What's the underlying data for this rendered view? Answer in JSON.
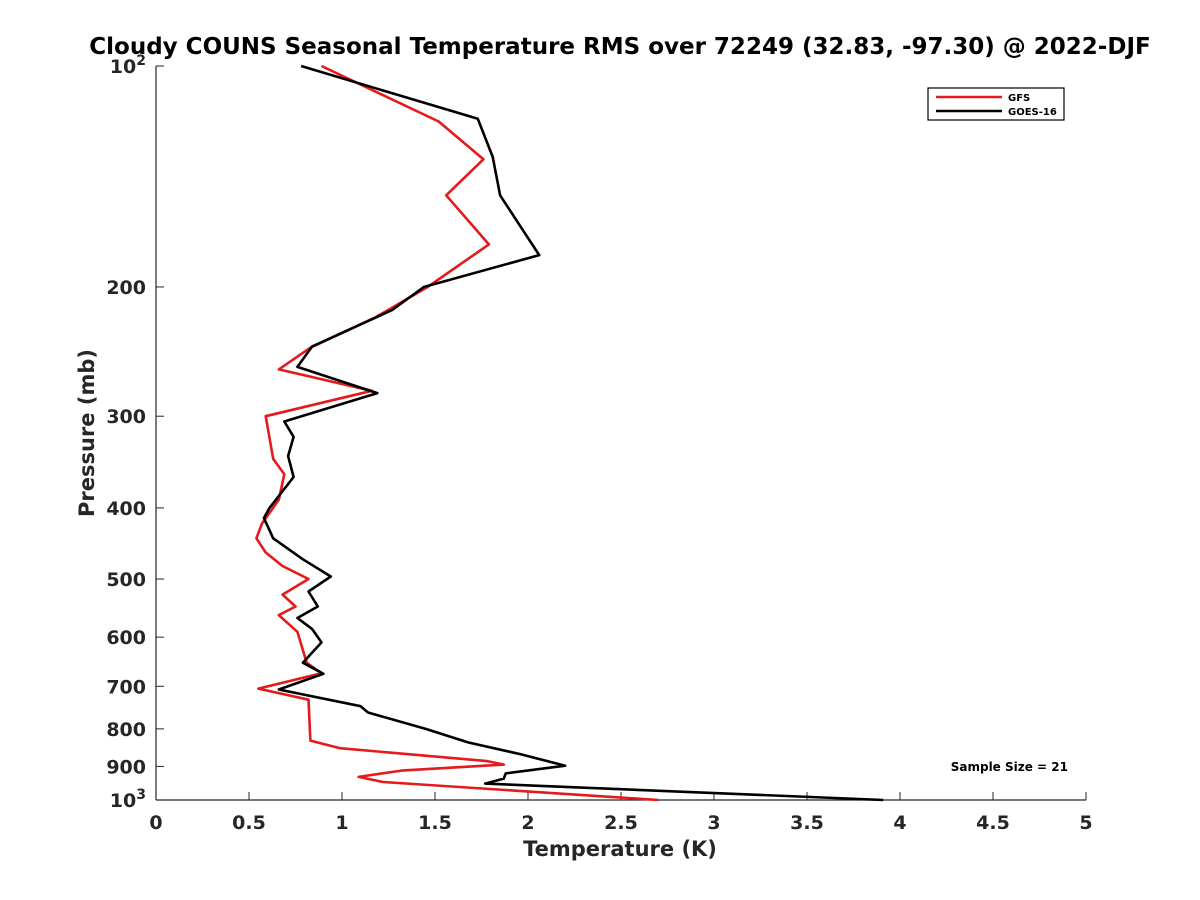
{
  "chart_data": {
    "type": "line",
    "title": "Cloudy COUNS Seasonal Temperature RMS over 72249 (32.83, -97.30) @ 2022-DJF",
    "xlabel": "Temperature (K)",
    "ylabel": "Pressure (mb)",
    "xlim": [
      0,
      5
    ],
    "ylim": [
      100,
      1000
    ],
    "yscale": "log",
    "yreversed": true,
    "x_ticks": [
      0,
      0.5,
      1,
      1.5,
      2,
      2.5,
      3,
      3.5,
      4,
      4.5,
      5
    ],
    "x_tick_labels": [
      "0",
      "0.5",
      "1",
      "1.5",
      "2",
      "2.5",
      "3",
      "3.5",
      "4",
      "4.5",
      "5"
    ],
    "y_ticks": [
      100,
      200,
      300,
      400,
      500,
      600,
      700,
      800,
      900,
      1000
    ],
    "y_tick_labels": [
      {
        "base": "10",
        "exp": "2"
      },
      {
        "base": "200",
        "exp": ""
      },
      {
        "base": "300",
        "exp": ""
      },
      {
        "base": "400",
        "exp": ""
      },
      {
        "base": "500",
        "exp": ""
      },
      {
        "base": "600",
        "exp": ""
      },
      {
        "base": "700",
        "exp": ""
      },
      {
        "base": "800",
        "exp": ""
      },
      {
        "base": "900",
        "exp": ""
      },
      {
        "base": "10",
        "exp": "3"
      }
    ],
    "legend_position": "top-right",
    "annotation": "Sample Size = 21",
    "series": [
      {
        "name": "GFS",
        "color": "#e41a1c",
        "points": [
          [
            0.89,
            100
          ],
          [
            1.52,
            119
          ],
          [
            1.76,
            134
          ],
          [
            1.56,
            150
          ],
          [
            1.79,
            175
          ],
          [
            1.46,
            200
          ],
          [
            1.18,
            220
          ],
          [
            0.83,
            242
          ],
          [
            0.66,
            259
          ],
          [
            1.16,
            277
          ],
          [
            0.59,
            300
          ],
          [
            0.63,
            343
          ],
          [
            0.69,
            360
          ],
          [
            0.66,
            390
          ],
          [
            0.57,
            420
          ],
          [
            0.54,
            440
          ],
          [
            0.59,
            460
          ],
          [
            0.68,
            480
          ],
          [
            0.82,
            500
          ],
          [
            0.68,
            525
          ],
          [
            0.75,
            545
          ],
          [
            0.66,
            560
          ],
          [
            0.76,
            590
          ],
          [
            0.81,
            650
          ],
          [
            0.89,
            672
          ],
          [
            0.55,
            705
          ],
          [
            0.82,
            730
          ],
          [
            0.83,
            830
          ],
          [
            0.99,
            850
          ],
          [
            1.78,
            885
          ],
          [
            1.87,
            895
          ],
          [
            1.32,
            912
          ],
          [
            1.09,
            930
          ],
          [
            1.22,
            945
          ],
          [
            2.7,
            1000
          ]
        ]
      },
      {
        "name": "GOES-16",
        "color": "#000000",
        "points": [
          [
            0.78,
            100
          ],
          [
            1.73,
            118
          ],
          [
            1.81,
            133
          ],
          [
            1.85,
            150
          ],
          [
            2.06,
            181
          ],
          [
            1.44,
            200
          ],
          [
            1.27,
            215
          ],
          [
            0.84,
            241
          ],
          [
            0.76,
            257
          ],
          [
            1.19,
            279
          ],
          [
            0.69,
            305
          ],
          [
            0.74,
            320
          ],
          [
            0.71,
            340
          ],
          [
            0.74,
            363
          ],
          [
            0.61,
            400
          ],
          [
            0.58,
            413
          ],
          [
            0.63,
            440
          ],
          [
            0.79,
            470
          ],
          [
            0.94,
            496
          ],
          [
            0.82,
            520
          ],
          [
            0.87,
            545
          ],
          [
            0.76,
            565
          ],
          [
            0.84,
            585
          ],
          [
            0.89,
            610
          ],
          [
            0.79,
            650
          ],
          [
            0.9,
            673
          ],
          [
            0.66,
            707
          ],
          [
            1.1,
            745
          ],
          [
            1.14,
            760
          ],
          [
            1.45,
            800
          ],
          [
            1.68,
            835
          ],
          [
            1.95,
            865
          ],
          [
            2.2,
            898
          ],
          [
            1.88,
            920
          ],
          [
            1.87,
            935
          ],
          [
            1.77,
            950
          ],
          [
            3.91,
            1000
          ]
        ]
      }
    ]
  }
}
